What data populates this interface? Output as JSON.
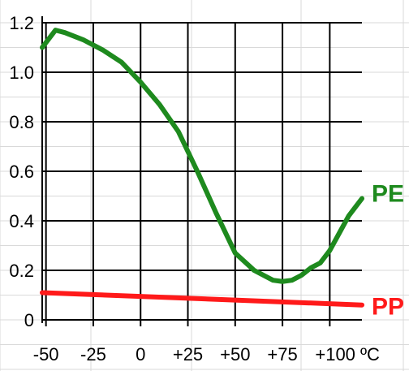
{
  "chart_data": {
    "type": "line",
    "title": "",
    "xlabel": "",
    "ylabel": "",
    "x_tick_labels": [
      "-50",
      "-25",
      "0",
      "+25",
      "+50",
      "+75",
      "+100 ºC"
    ],
    "x_tick_values": [
      -50,
      -25,
      0,
      25,
      50,
      75,
      100
    ],
    "y_tick_labels": [
      "0",
      "0.2",
      "0.4",
      "0.6",
      "0.8",
      "1.0",
      "1.2"
    ],
    "y_tick_values": [
      0,
      0.2,
      0.4,
      0.6,
      0.8,
      1.0,
      1.2
    ],
    "xlim": [
      -52,
      117
    ],
    "ylim": [
      0,
      1.2
    ],
    "grid": true,
    "legend": "none (series labels at right end of lines)",
    "series": [
      {
        "name": "PE",
        "color": "#1e8a1e",
        "x": [
          -52,
          -45,
          -40,
          -30,
          -20,
          -10,
          0,
          10,
          20,
          30,
          40,
          50,
          60,
          70,
          75,
          80,
          85,
          90,
          95,
          100,
          105,
          110,
          117
        ],
        "y": [
          1.1,
          1.17,
          1.16,
          1.13,
          1.09,
          1.04,
          0.96,
          0.87,
          0.76,
          0.6,
          0.43,
          0.27,
          0.2,
          0.16,
          0.155,
          0.16,
          0.18,
          0.21,
          0.23,
          0.28,
          0.35,
          0.42,
          0.49
        ]
      },
      {
        "name": "PP",
        "color": "#ff1a1a",
        "x": [
          -52,
          117
        ],
        "y": [
          0.11,
          0.06
        ]
      }
    ]
  }
}
